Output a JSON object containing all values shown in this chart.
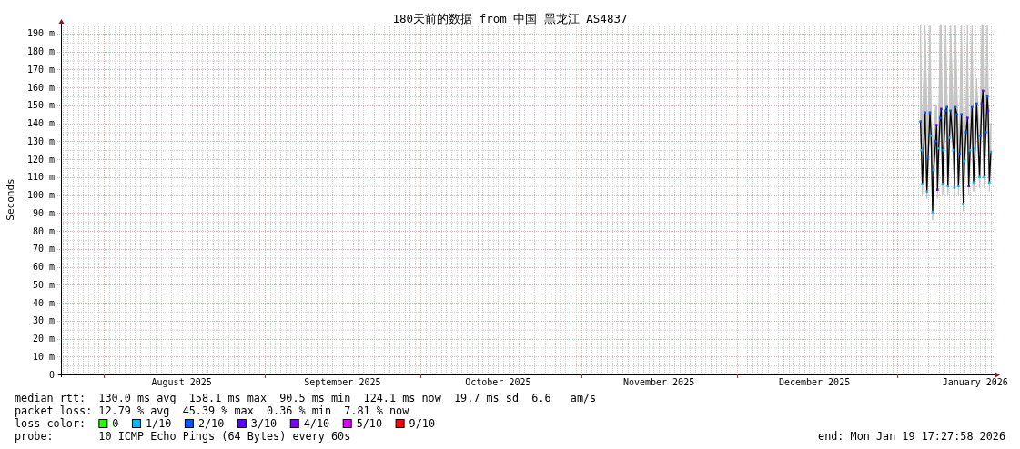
{
  "chart_data": {
    "type": "line",
    "title": "180天前的数据 from 中国 黑龙江 AS4837",
    "ylabel": "Seconds",
    "legend_title": "loss color:",
    "legend": "bottom",
    "grid": true,
    "xlim": [
      "2025-07-23T17:28",
      "2026-01-19T17:28"
    ],
    "xticks": [
      {
        "value": "2025-08-01",
        "label": null
      },
      {
        "value": "2025-08-16",
        "label": "August 2025"
      },
      {
        "value": "2025-09-01",
        "label": null
      },
      {
        "value": "2025-09-16",
        "label": "September 2025"
      },
      {
        "value": "2025-10-01",
        "label": null
      },
      {
        "value": "2025-10-16",
        "label": "October 2025"
      },
      {
        "value": "2025-11-01",
        "label": null
      },
      {
        "value": "2025-11-16",
        "label": "November 2025"
      },
      {
        "value": "2025-12-01",
        "label": null
      },
      {
        "value": "2025-12-16",
        "label": "December 2025"
      },
      {
        "value": "2026-01-01",
        "label": null
      },
      {
        "value": "2026-01-16",
        "label": "January 2026"
      }
    ],
    "ylim": [
      0,
      195
    ],
    "yticks": [
      0,
      {
        "value": 10,
        "label": "10 m"
      },
      {
        "value": 20,
        "label": "20 m"
      },
      {
        "value": 30,
        "label": "30 m"
      },
      {
        "value": 40,
        "label": "40 m"
      },
      {
        "value": 50,
        "label": "50 m"
      },
      {
        "value": 60,
        "label": "60 m"
      },
      {
        "value": 70,
        "label": "70 m"
      },
      {
        "value": 80,
        "label": "80 m"
      },
      {
        "value": 90,
        "label": "90 m"
      },
      {
        "value": 100,
        "label": "100 m"
      },
      {
        "value": 110,
        "label": "110 m"
      },
      {
        "value": 120,
        "label": "120 m"
      },
      {
        "value": 130,
        "label": "130 m"
      },
      {
        "value": 140,
        "label": "140 m"
      },
      {
        "value": 150,
        "label": "150 m"
      },
      {
        "value": 160,
        "label": "160 m"
      },
      {
        "value": 170,
        "label": "170 m"
      },
      {
        "value": 180,
        "label": "180 m"
      },
      {
        "value": 190,
        "label": "190 m"
      }
    ],
    "x": [
      "2026-01-05T11:00",
      "2026-01-05T15:15",
      "2026-01-05T19:30",
      "2026-01-06T08:00",
      "2026-01-06T16:30",
      "2026-01-06T22:00",
      "2026-01-07T06:30",
      "2026-01-07T12:00",
      "2026-01-07T19:00",
      "2026-01-07T23:30",
      "2026-01-08T09:00",
      "2026-01-08T13:30",
      "2026-01-08T17:30",
      "2026-01-08T23:00",
      "2026-01-09T06:00",
      "2026-01-09T10:30",
      "2026-01-09T17:30",
      "2026-01-09T21:30",
      "2026-01-10T07:30",
      "2026-01-10T13:00",
      "2026-01-10T17:30",
      "2026-01-11T00:30",
      "2026-01-11T06:00",
      "2026-01-11T20:00",
      "2026-01-12T00:00",
      "2026-01-12T04:30",
      "2026-01-12T11:30",
      "2026-01-12T18:30",
      "2026-01-13T00:00",
      "2026-01-13T08:30",
      "2026-01-13T17:00",
      "2026-01-13T22:30",
      "2026-01-14T05:30",
      "2026-01-14T12:30",
      "2026-01-14T18:00",
      "2026-01-15T00:00",
      "2026-01-15T09:30",
      "2026-01-15T16:30",
      "2026-01-15T23:30",
      "2026-01-16T06:30",
      "2026-01-16T20:30",
      "2026-01-17T01:00",
      "2026-01-17T06:30",
      "2026-01-17T12:00",
      "2026-01-17T17:30",
      "2026-01-18T01:00",
      "2026-01-18T08:00",
      "2026-01-18T12:00",
      "2026-01-18T17:30",
      "2026-01-19T00:30"
    ],
    "series": [
      {
        "color": "#000000",
        "values": [
          141,
          125,
          106,
          146,
          102,
          121,
          146,
          133,
          90.5,
          114,
          130,
          139,
          103,
          126,
          143,
          148,
          106,
          125,
          147,
          149,
          105,
          132,
          147,
          125,
          104,
          149,
          145,
          105,
          123,
          145,
          95,
          119,
          135,
          143,
          105,
          125,
          149,
          107,
          126,
          151,
          110,
          133,
          151,
          158.1,
          110,
          135,
          155,
          147,
          107,
          124.1
        ],
        "lower": [
          132,
          118,
          100,
          138,
          98,
          115,
          138,
          125,
          86,
          108,
          122,
          130,
          98,
          118,
          135,
          140,
          100,
          118,
          138,
          140,
          100,
          122,
          140,
          118,
          98,
          140,
          138,
          100,
          115,
          138,
          91,
          112,
          128,
          135,
          100,
          118,
          140,
          102,
          118,
          142,
          104,
          125,
          142,
          150,
          104,
          128,
          146,
          140,
          102,
          118
        ],
        "upper": [
          195,
          150,
          140,
          195,
          150,
          140,
          195,
          150,
          120,
          135,
          150,
          150,
          125,
          140,
          195,
          195,
          130,
          140,
          195,
          160,
          130,
          145,
          195,
          140,
          130,
          195,
          160,
          130,
          140,
          195,
          125,
          135,
          150,
          195,
          125,
          140,
          195,
          130,
          140,
          165,
          130,
          150,
          195,
          195,
          130,
          150,
          195,
          160,
          130,
          140
        ]
      },
      {
        "type": "scatter",
        "name": "0",
        "color": "#26ff00",
        "values": [
          null,
          null,
          null,
          null,
          null,
          null,
          null,
          null,
          null,
          null,
          null,
          null,
          null,
          null,
          null,
          null,
          null,
          null,
          null,
          null,
          null,
          null,
          null,
          null,
          null,
          null,
          null,
          null,
          null,
          null,
          null,
          null,
          null,
          null,
          null,
          null,
          null,
          null,
          null,
          null,
          null,
          null,
          null,
          null,
          null,
          null,
          null,
          null,
          null,
          null
        ]
      },
      {
        "type": "scatter",
        "name": "1/10",
        "color": "#00b8ff",
        "marker": "square",
        "x": [
          "2026-01-05T15:15",
          "2026-01-05T19:30",
          "2026-01-06T16:30",
          "2026-01-07T12:00",
          "2026-01-07T19:00",
          "2026-01-07T23:30",
          "2026-01-08T23:00",
          "2026-01-09T17:30",
          "2026-01-09T21:30",
          "2026-01-10T17:30",
          "2026-01-11T00:30",
          "2026-01-11T20:00",
          "2026-01-12T00:00",
          "2026-01-12T18:30",
          "2026-01-13T17:00",
          "2026-01-13T22:30",
          "2026-01-15T00:00",
          "2026-01-15T16:30",
          "2026-01-15T23:30",
          "2026-01-16T20:30",
          "2026-01-17T17:30",
          "2026-01-18T17:30",
          "2026-01-19T00:30"
        ],
        "values": [
          125,
          106,
          102,
          133,
          90.5,
          114,
          126,
          106,
          125,
          105,
          132,
          125,
          104,
          105,
          95,
          119,
          125,
          107,
          126,
          110,
          110,
          107,
          124.1
        ]
      },
      {
        "type": "scatter",
        "name": "2/10",
        "color": "#0059ff",
        "marker": "square",
        "x": [
          "2026-01-05T11:00",
          "2026-01-06T08:00",
          "2026-01-06T22:00",
          "2026-01-07T06:30",
          "2026-01-08T09:00",
          "2026-01-09T06:00",
          "2026-01-10T07:30",
          "2026-01-10T13:00",
          "2026-01-11T06:00",
          "2026-01-12T04:30",
          "2026-01-12T11:30",
          "2026-01-13T00:00",
          "2026-01-13T08:30",
          "2026-01-14T05:30",
          "2026-01-15T09:30",
          "2026-01-16T06:30",
          "2026-01-17T01:00",
          "2026-01-18T01:00",
          "2026-01-18T08:00"
        ],
        "values": [
          141,
          146,
          121,
          146,
          130,
          143,
          147,
          149,
          147,
          149,
          145,
          123,
          145,
          135,
          149,
          151,
          133,
          135,
          155
        ]
      },
      {
        "type": "scatter",
        "name": "3/10",
        "color": "#5e00ff",
        "marker": "square",
        "x": [
          "2026-01-08T13:30",
          "2026-01-08T17:30",
          "2026-01-09T10:30",
          "2026-01-14T12:30",
          "2026-01-14T18:00",
          "2026-01-17T06:30",
          "2026-01-17T12:00",
          "2026-01-18T12:00"
        ],
        "values": [
          139,
          103,
          148,
          143,
          105,
          151,
          158.1,
          147
        ]
      },
      {
        "type": "scatter",
        "name": "4/10",
        "color": "#7e00ff",
        "values": [
          null,
          null,
          null,
          null,
          null,
          null,
          null,
          null,
          null,
          null,
          null,
          null,
          null,
          null,
          null,
          null,
          null,
          null,
          null,
          null,
          null,
          null,
          null,
          null,
          null,
          null,
          null,
          null,
          null,
          null,
          null,
          null,
          null,
          null,
          null,
          null,
          null,
          null,
          null,
          null,
          null,
          null,
          null,
          null,
          null,
          null,
          null,
          null,
          null,
          null
        ]
      },
      {
        "type": "scatter",
        "name": "5/10",
        "color": "#dd00ff",
        "values": [
          null,
          null,
          null,
          null,
          null,
          null,
          null,
          null,
          null,
          null,
          null,
          null,
          null,
          null,
          null,
          null,
          null,
          null,
          null,
          null,
          null,
          null,
          null,
          null,
          null,
          null,
          null,
          null,
          null,
          null,
          null,
          null,
          null,
          null,
          null,
          null,
          null,
          null,
          null,
          null,
          null,
          null,
          null,
          null,
          null,
          null,
          null,
          null,
          null,
          null
        ]
      },
      {
        "type": "scatter",
        "name": "9/10",
        "color": "#ff0000",
        "values": [
          null,
          null,
          null,
          null,
          null,
          null,
          null,
          null,
          null,
          null,
          null,
          null,
          null,
          null,
          null,
          null,
          null,
          null,
          null,
          null,
          null,
          null,
          null,
          null,
          null,
          null,
          null,
          null,
          null,
          null,
          null,
          null,
          null,
          null,
          null,
          null,
          null,
          null,
          null,
          null,
          null,
          null,
          null,
          null,
          null,
          null,
          null,
          null,
          null,
          null
        ]
      }
    ],
    "annotations": [
      "median rtt:  130.0 ms avg  158.1 ms max  90.5 ms min  124.1 ms now  19.7 ms sd  6.6   am/s",
      "packet loss: 12.79 % avg  45.39 % max  0.36 % min  7.81 % now",
      "probe:       10 ICMP Echo Pings (64 Bytes) every 60s",
      "end: Mon Jan 19 17:27:58 2026"
    ]
  }
}
